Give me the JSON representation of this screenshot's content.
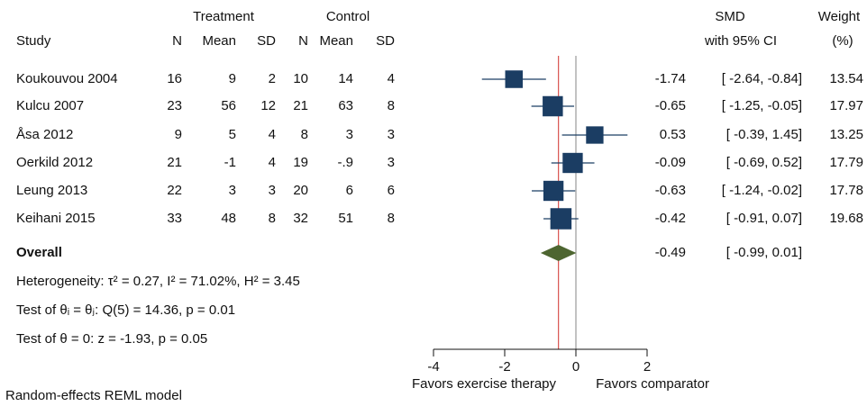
{
  "chart_data": {
    "type": "forest",
    "group_labels": [
      "Treatment",
      "Control"
    ],
    "columns": [
      "Study",
      "N",
      "Mean",
      "SD",
      "N",
      "Mean",
      "SD"
    ],
    "smd_header": [
      "SMD",
      "with 95% CI"
    ],
    "weight_header": [
      "Weight",
      "(%)"
    ],
    "studies": [
      {
        "name": "Koukouvou 2004",
        "treatment": [
          16,
          9,
          2
        ],
        "control": [
          10,
          14,
          4
        ],
        "smd": -1.74,
        "ci": [
          -2.64,
          -0.84
        ],
        "ci_label": "[ -2.64, -0.84]",
        "weight": 13.54
      },
      {
        "name": "Kulcu 2007",
        "treatment": [
          23,
          56,
          12
        ],
        "control": [
          21,
          63,
          8
        ],
        "smd": -0.65,
        "ci": [
          -1.25,
          -0.05
        ],
        "ci_label": "[ -1.25, -0.05]",
        "weight": 17.97
      },
      {
        "name": "Åsa 2012",
        "treatment": [
          9,
          5,
          4
        ],
        "control": [
          8,
          3,
          3
        ],
        "smd": 0.53,
        "ci": [
          -0.39,
          1.45
        ],
        "ci_label": "[ -0.39, 1.45]",
        "weight": 13.25
      },
      {
        "name": "Oerkild 2012",
        "treatment": [
          21,
          -1,
          4
        ],
        "control": [
          19,
          {
            "value": -0.9,
            "label": "-.9"
          },
          3
        ],
        "smd": -0.09,
        "ci": [
          -0.69,
          0.52
        ],
        "ci_label": "[ -0.69, 0.52]",
        "weight": 17.79
      },
      {
        "name": "Leung 2013",
        "treatment": [
          22,
          3,
          3
        ],
        "control": [
          20,
          6,
          6
        ],
        "smd": -0.63,
        "ci": [
          -1.24,
          -0.02
        ],
        "ci_label": "[ -1.24, -0.02]",
        "weight": 17.78
      },
      {
        "name": "Keihani 2015",
        "treatment": [
          33,
          48,
          8
        ],
        "control": [
          32,
          51,
          8
        ],
        "smd": -0.42,
        "ci": [
          -0.91,
          0.07
        ],
        "ci_label": "[ -0.91, 0.07]",
        "weight": 19.68
      }
    ],
    "overall": {
      "label": "Overall",
      "smd": -0.49,
      "ci": [
        -0.99,
        0.01
      ],
      "ci_label": "[ -0.99, 0.01]"
    },
    "notes": [
      "Heterogeneity: τ² = 0.27, I² = 71.02%, H² = 3.45",
      "Test of θᵢ = θⱼ: Q(5) = 14.36, p = 0.01",
      "Test of θ = 0: z = -1.93, p = 0.05"
    ],
    "xlim": [
      -4,
      2
    ],
    "xticks": [
      -4,
      -2,
      0,
      2
    ],
    "x_labels": [
      "Favors exercise therapy",
      "Favors comparator"
    ],
    "footnote": "Random-effects REML model",
    "colors": {
      "marker": "#1b3d63",
      "overall": "#4d6530",
      "null_line": "#9a9a9a",
      "overall_line": "#d9534f"
    }
  }
}
